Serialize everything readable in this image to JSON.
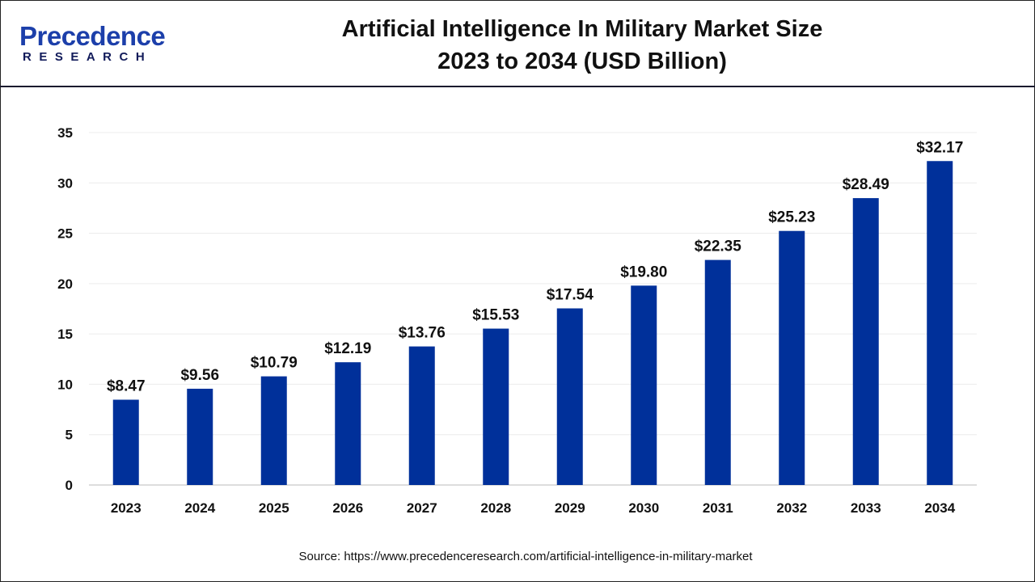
{
  "logo": {
    "line1": "Precedence",
    "line2": "RESEARCH"
  },
  "title": {
    "line1": "Artificial Intelligence In Military Market Size",
    "line2": "2023 to 2034 (USD Billion)"
  },
  "source": "Source: https://www.precedenceresearch.com/artificial-intelligence-in-military-market",
  "chart_data": {
    "type": "bar",
    "title": "Artificial Intelligence In Military Market Size 2023 to 2034 (USD Billion)",
    "categories": [
      "2023",
      "2024",
      "2025",
      "2026",
      "2027",
      "2028",
      "2029",
      "2030",
      "2031",
      "2032",
      "2033",
      "2034"
    ],
    "values": [
      8.47,
      9.56,
      10.79,
      12.19,
      13.76,
      15.53,
      17.54,
      19.8,
      22.35,
      25.23,
      28.49,
      32.17
    ],
    "data_labels": [
      "$8.47",
      "$9.56",
      "$10.79",
      "$12.19",
      "$13.76",
      "$15.53",
      "$17.54",
      "$19.80",
      "$22.35",
      "$25.23",
      "$28.49",
      "$32.17"
    ],
    "yticks": [
      0,
      5,
      10,
      15,
      20,
      25,
      30,
      35
    ],
    "ylim": [
      0,
      35
    ],
    "grid": true,
    "bar_color": "#00309a",
    "xlabel": "",
    "ylabel": ""
  }
}
